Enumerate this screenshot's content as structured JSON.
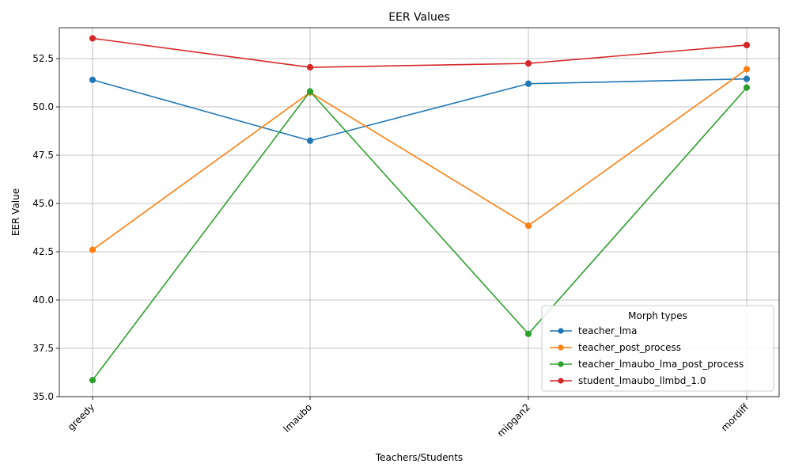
{
  "chart_data": {
    "type": "line",
    "title": "EER Values",
    "xlabel": "Teachers/Students",
    "ylabel": "EER Value",
    "categories": [
      "greedy",
      "lmaubo",
      "mipgan2",
      "mordiff"
    ],
    "ylim": [
      35.0,
      54.1
    ],
    "yticks": [
      "35.0",
      "37.5",
      "40.0",
      "42.5",
      "45.0",
      "47.5",
      "50.0",
      "52.5"
    ],
    "ytick_values": [
      35.0,
      37.5,
      40.0,
      42.5,
      45.0,
      47.5,
      50.0,
      52.5
    ],
    "grid": true,
    "legend": {
      "title": "Morph types",
      "placement": "lower-right"
    },
    "series": [
      {
        "name": "teacher_lma",
        "color": "#1f77b4",
        "values": [
          51.4,
          48.25,
          51.2,
          51.45
        ]
      },
      {
        "name": "teacher_post_process",
        "color": "#ff7f0e",
        "values": [
          42.6,
          50.75,
          43.85,
          51.95
        ]
      },
      {
        "name": "teacher_lmaubo_lma_post_process",
        "color": "#2ca02c",
        "values": [
          35.85,
          50.8,
          38.25,
          51.0
        ]
      },
      {
        "name": "student_lmaubo_llmbd_1.0",
        "color": "#d62728",
        "values": [
          53.55,
          52.05,
          52.25,
          53.2
        ]
      }
    ]
  }
}
